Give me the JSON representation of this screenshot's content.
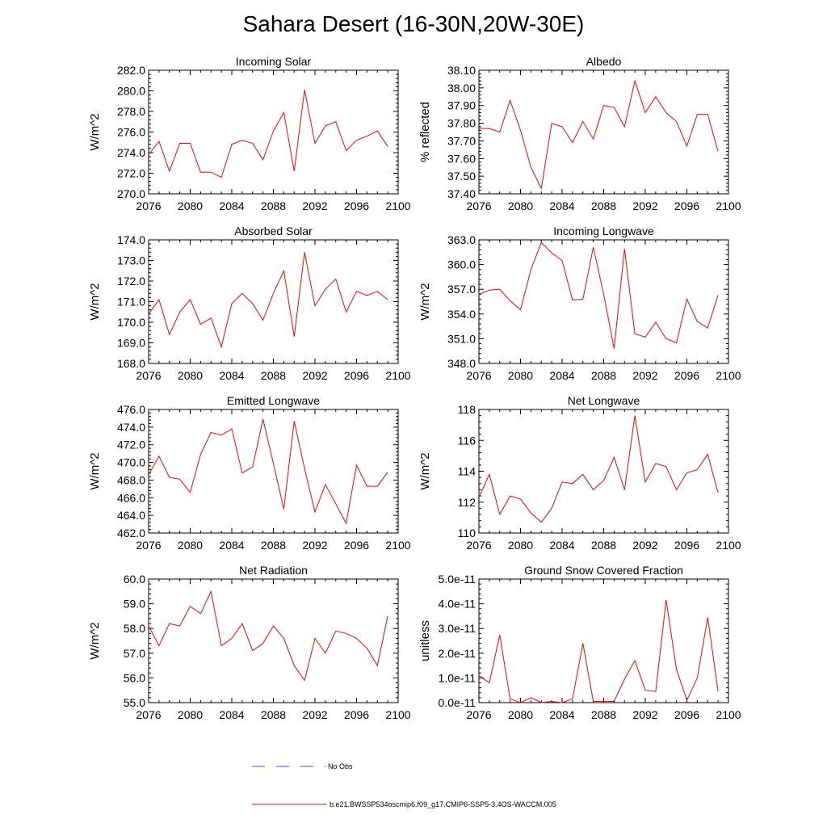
{
  "title": "Sahara Desert (16-30N,20W-30E)",
  "legend": {
    "obs_label": "No Obs",
    "model_label": "b.e21.BWSSP534oscmip6.f09_g17.CMIP6-SSP5-3.4OS-WACCM.005",
    "obs_color": "#4444ee",
    "model_color": "#ff0000"
  },
  "chart_data": [
    {
      "type": "line",
      "title": "Incoming Solar",
      "ylabel": "W/m^2",
      "xlim": [
        2076,
        2100
      ],
      "ylim": [
        270,
        282
      ],
      "xticks": [
        "2076",
        "2080",
        "2084",
        "2088",
        "2092",
        "2096",
        "2100"
      ],
      "yticks": [
        "270.0",
        "272.0",
        "274.0",
        "276.0",
        "278.0",
        "280.0",
        "282.0"
      ],
      "x": [
        2076,
        2077,
        2078,
        2079,
        2080,
        2081,
        2082,
        2083,
        2084,
        2085,
        2086,
        2087,
        2088,
        2089,
        2090,
        2091,
        2092,
        2093,
        2094,
        2095,
        2096,
        2097,
        2098,
        2099
      ],
      "series": [
        {
          "values": [
            273.8,
            275.1,
            272.2,
            274.9,
            274.9,
            272.1,
            272.1,
            271.6,
            274.8,
            275.2,
            274.9,
            273.3,
            276.1,
            277.9,
            272.2,
            280.1,
            274.9,
            276.6,
            277.0,
            274.2,
            275.2,
            275.6,
            276.1,
            274.6
          ]
        }
      ]
    },
    {
      "type": "line",
      "title": "Albedo",
      "ylabel": "% reflected",
      "xlim": [
        2076,
        2100
      ],
      "ylim": [
        37.4,
        38.1
      ],
      "xticks": [
        "2076",
        "2080",
        "2084",
        "2088",
        "2092",
        "2096",
        "2100"
      ],
      "yticks": [
        "37.40",
        "37.50",
        "37.60",
        "37.70",
        "37.80",
        "37.90",
        "38.00",
        "38.10"
      ],
      "x": [
        2076,
        2077,
        2078,
        2079,
        2080,
        2081,
        2082,
        2083,
        2084,
        2085,
        2086,
        2087,
        2088,
        2089,
        2090,
        2091,
        2092,
        2093,
        2094,
        2095,
        2096,
        2097,
        2098,
        2099
      ],
      "series": [
        {
          "values": [
            37.77,
            37.77,
            37.75,
            37.93,
            37.76,
            37.55,
            37.43,
            37.8,
            37.78,
            37.69,
            37.81,
            37.71,
            37.9,
            37.89,
            37.78,
            38.04,
            37.86,
            37.95,
            37.86,
            37.81,
            37.67,
            37.85,
            37.85,
            37.64
          ]
        }
      ]
    },
    {
      "type": "line",
      "title": "Absorbed Solar",
      "ylabel": "W/m^2",
      "xlim": [
        2076,
        2100
      ],
      "ylim": [
        168,
        174
      ],
      "xticks": [
        "2076",
        "2080",
        "2084",
        "2088",
        "2092",
        "2096",
        "2100"
      ],
      "yticks": [
        "168.0",
        "169.0",
        "170.0",
        "171.0",
        "172.0",
        "173.0",
        "174.0"
      ],
      "x": [
        2076,
        2077,
        2078,
        2079,
        2080,
        2081,
        2082,
        2083,
        2084,
        2085,
        2086,
        2087,
        2088,
        2089,
        2090,
        2091,
        2092,
        2093,
        2094,
        2095,
        2096,
        2097,
        2098,
        2099
      ],
      "series": [
        {
          "values": [
            170.4,
            171.1,
            169.4,
            170.5,
            171.1,
            169.9,
            170.2,
            168.8,
            170.9,
            171.4,
            170.9,
            170.1,
            171.4,
            172.5,
            169.3,
            173.4,
            170.8,
            171.6,
            172.1,
            170.5,
            171.5,
            171.3,
            171.5,
            171.1
          ]
        }
      ]
    },
    {
      "type": "line",
      "title": "Incoming Longwave",
      "ylabel": "W/m^2",
      "xlim": [
        2076,
        2100
      ],
      "ylim": [
        348,
        363
      ],
      "xticks": [
        "2076",
        "2080",
        "2084",
        "2088",
        "2092",
        "2096",
        "2100"
      ],
      "yticks": [
        "348.0",
        "351.0",
        "354.0",
        "357.0",
        "360.0",
        "363.0"
      ],
      "x": [
        2076,
        2077,
        2078,
        2079,
        2080,
        2081,
        2082,
        2083,
        2084,
        2085,
        2086,
        2087,
        2088,
        2089,
        2090,
        2091,
        2092,
        2093,
        2094,
        2095,
        2096,
        2097,
        2098,
        2099
      ],
      "series": [
        {
          "values": [
            356.4,
            356.9,
            357.0,
            355.6,
            354.5,
            359.4,
            362.7,
            361.4,
            360.5,
            355.7,
            355.8,
            362.1,
            356.4,
            349.8,
            361.9,
            351.6,
            351.2,
            353.0,
            351.0,
            350.5,
            355.8,
            353.1,
            352.3,
            356.3
          ]
        }
      ]
    },
    {
      "type": "line",
      "title": "Emitted Longwave",
      "ylabel": "W/m^2",
      "xlim": [
        2076,
        2100
      ],
      "ylim": [
        462,
        476
      ],
      "xticks": [
        "2076",
        "2080",
        "2084",
        "2088",
        "2092",
        "2096",
        "2100"
      ],
      "yticks": [
        "462.0",
        "464.0",
        "466.0",
        "468.0",
        "470.0",
        "472.0",
        "474.0",
        "476.0"
      ],
      "x": [
        2076,
        2077,
        2078,
        2079,
        2080,
        2081,
        2082,
        2083,
        2084,
        2085,
        2086,
        2087,
        2088,
        2089,
        2090,
        2091,
        2092,
        2093,
        2094,
        2095,
        2096,
        2097,
        2098,
        2099
      ],
      "series": [
        {
          "values": [
            468.6,
            470.7,
            468.3,
            468.1,
            466.6,
            470.9,
            473.4,
            473.1,
            473.8,
            468.8,
            469.5,
            474.9,
            469.9,
            464.7,
            474.7,
            469.3,
            464.4,
            467.5,
            465.3,
            463.1,
            469.7,
            467.3,
            467.3,
            468.9
          ]
        }
      ]
    },
    {
      "type": "line",
      "title": "Net Longwave",
      "ylabel": "W/m^2",
      "xlim": [
        2076,
        2100
      ],
      "ylim": [
        110,
        118
      ],
      "xticks": [
        "2076",
        "2080",
        "2084",
        "2088",
        "2092",
        "2096",
        "2100"
      ],
      "yticks": [
        "110",
        "112",
        "114",
        "116",
        "118"
      ],
      "x": [
        2076,
        2077,
        2078,
        2079,
        2080,
        2081,
        2082,
        2083,
        2084,
        2085,
        2086,
        2087,
        2088,
        2089,
        2090,
        2091,
        2092,
        2093,
        2094,
        2095,
        2096,
        2097,
        2098,
        2099
      ],
      "series": [
        {
          "values": [
            112.3,
            113.8,
            111.2,
            112.4,
            112.2,
            111.3,
            110.7,
            111.6,
            113.3,
            113.2,
            113.8,
            112.8,
            113.4,
            114.9,
            112.8,
            117.6,
            113.3,
            114.5,
            114.3,
            112.8,
            113.9,
            114.1,
            115.1,
            112.6
          ]
        }
      ]
    },
    {
      "type": "line",
      "title": "Net Radiation",
      "ylabel": "W/m^2",
      "xlim": [
        2076,
        2100
      ],
      "ylim": [
        55,
        60
      ],
      "xticks": [
        "2076",
        "2080",
        "2084",
        "2088",
        "2092",
        "2096",
        "2100"
      ],
      "yticks": [
        "55.0",
        "56.0",
        "57.0",
        "58.0",
        "59.0",
        "60.0"
      ],
      "x": [
        2076,
        2077,
        2078,
        2079,
        2080,
        2081,
        2082,
        2083,
        2084,
        2085,
        2086,
        2087,
        2088,
        2089,
        2090,
        2091,
        2092,
        2093,
        2094,
        2095,
        2096,
        2097,
        2098,
        2099
      ],
      "series": [
        {
          "values": [
            58.1,
            57.3,
            58.2,
            58.1,
            58.9,
            58.6,
            59.5,
            57.3,
            57.6,
            58.2,
            57.1,
            57.4,
            58.1,
            57.6,
            56.5,
            55.9,
            57.6,
            57.0,
            57.9,
            57.8,
            57.6,
            57.2,
            56.5,
            58.5
          ]
        }
      ]
    },
    {
      "type": "line",
      "title": "Ground Snow Covered Fraction",
      "ylabel": "unitless",
      "xlim": [
        2076,
        2100
      ],
      "ylim": [
        0,
        5e-11
      ],
      "xticks": [
        "2076",
        "2080",
        "2084",
        "2088",
        "2092",
        "2096",
        "2100"
      ],
      "yticks": [
        "0.0e-11",
        "1.0e-11",
        "2.0e-11",
        "3.0e-11",
        "4.0e-11",
        "5.0e-11"
      ],
      "x": [
        2076,
        2077,
        2078,
        2079,
        2080,
        2081,
        2082,
        2083,
        2084,
        2085,
        2086,
        2087,
        2088,
        2089,
        2090,
        2091,
        2092,
        2093,
        2094,
        2095,
        2096,
        2097,
        2098,
        2099
      ],
      "series": [
        {
          "values": [
            1.1e-11,
            8e-12,
            2.75e-11,
            1.5e-12,
            0.0,
            2e-12,
            0.0,
            5e-13,
            0.0,
            1.5e-12,
            2.4e-11,
            5e-13,
            5e-13,
            5e-13,
            9.5e-12,
            1.7e-11,
            5e-12,
            4.5e-12,
            4.15e-11,
            1.35e-11,
            1e-12,
            1e-11,
            3.45e-11,
            4.5e-12
          ]
        }
      ]
    }
  ]
}
